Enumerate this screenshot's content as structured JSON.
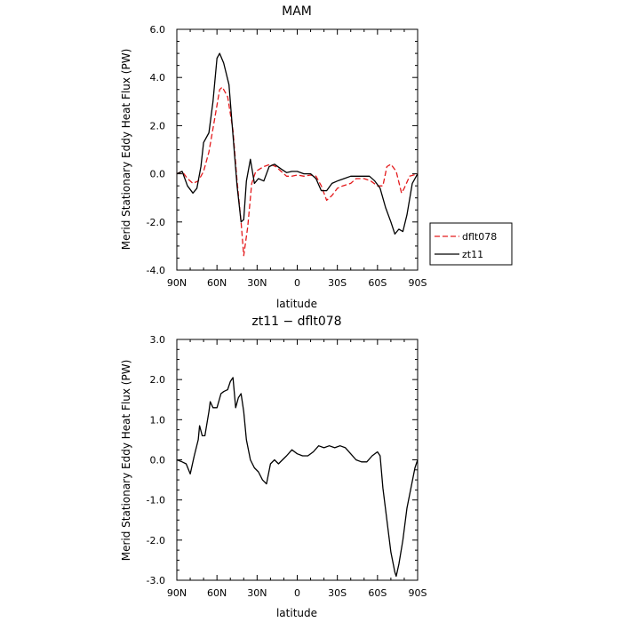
{
  "chart_data": [
    {
      "type": "line",
      "title": "MAM",
      "xlabel": "latitude",
      "ylabel": "Merid Stationary Eddy Heat Flux (PW)",
      "x_ticks": [
        {
          "value": 90,
          "label": "90N"
        },
        {
          "value": 60,
          "label": "60N"
        },
        {
          "value": 30,
          "label": "30N"
        },
        {
          "value": 0,
          "label": "0"
        },
        {
          "value": -30,
          "label": "30S"
        },
        {
          "value": -60,
          "label": "60S"
        },
        {
          "value": -90,
          "label": "90S"
        }
      ],
      "xlim": [
        90,
        -90
      ],
      "y_ticks": [
        {
          "value": 6,
          "label": "6.0"
        },
        {
          "value": 4,
          "label": "4.0"
        },
        {
          "value": 2,
          "label": "2.0"
        },
        {
          "value": 0,
          "label": "0.0"
        },
        {
          "value": -2,
          "label": "-2.0"
        },
        {
          "value": -4,
          "label": "-4.0"
        }
      ],
      "ylim": [
        -4,
        6
      ],
      "grid": false,
      "legend": {
        "placement": "right"
      },
      "series": [
        {
          "name": "dflt078",
          "color": "#e41a1c",
          "dash": "dashed",
          "points": [
            [
              90,
              0.0
            ],
            [
              86,
              0.1
            ],
            [
              82,
              -0.2
            ],
            [
              78,
              -0.4
            ],
            [
              74,
              -0.3
            ],
            [
              70,
              0.1
            ],
            [
              66,
              0.9
            ],
            [
              62,
              2.2
            ],
            [
              58,
              3.5
            ],
            [
              56,
              3.6
            ],
            [
              52,
              3.2
            ],
            [
              48,
              1.8
            ],
            [
              45,
              -0.3
            ],
            [
              42,
              -2.0
            ],
            [
              40,
              -3.4
            ],
            [
              37,
              -2.2
            ],
            [
              34,
              -0.4
            ],
            [
              31,
              0.1
            ],
            [
              28,
              0.2
            ],
            [
              25,
              0.3
            ],
            [
              20,
              0.4
            ],
            [
              16,
              0.3
            ],
            [
              12,
              0.1
            ],
            [
              8,
              -0.1
            ],
            [
              4,
              -0.1
            ],
            [
              0,
              -0.05
            ],
            [
              -5,
              -0.1
            ],
            [
              -10,
              -0.05
            ],
            [
              -14,
              -0.1
            ],
            [
              -18,
              -0.5
            ],
            [
              -22,
              -1.1
            ],
            [
              -26,
              -0.9
            ],
            [
              -30,
              -0.6
            ],
            [
              -34,
              -0.5
            ],
            [
              -40,
              -0.4
            ],
            [
              -44,
              -0.2
            ],
            [
              -50,
              -0.2
            ],
            [
              -55,
              -0.3
            ],
            [
              -60,
              -0.5
            ],
            [
              -64,
              -0.5
            ],
            [
              -67,
              0.3
            ],
            [
              -70,
              0.4
            ],
            [
              -74,
              0.1
            ],
            [
              -78,
              -0.8
            ],
            [
              -80,
              -0.6
            ],
            [
              -84,
              -0.1
            ],
            [
              -90,
              0.0
            ]
          ]
        },
        {
          "name": "zt11",
          "color": "#000000",
          "dash": "solid",
          "points": [
            [
              90,
              0.0
            ],
            [
              86,
              0.1
            ],
            [
              82,
              -0.5
            ],
            [
              78,
              -0.8
            ],
            [
              75,
              -0.6
            ],
            [
              72,
              0.3
            ],
            [
              70,
              1.3
            ],
            [
              66,
              1.7
            ],
            [
              63,
              3.0
            ],
            [
              60,
              4.8
            ],
            [
              58,
              5.0
            ],
            [
              55,
              4.6
            ],
            [
              51,
              3.7
            ],
            [
              48,
              1.6
            ],
            [
              45,
              -0.5
            ],
            [
              42,
              -2.0
            ],
            [
              40,
              -1.9
            ],
            [
              38,
              -0.3
            ],
            [
              35,
              0.6
            ],
            [
              32,
              -0.4
            ],
            [
              29,
              -0.2
            ],
            [
              25,
              -0.3
            ],
            [
              21,
              0.3
            ],
            [
              17,
              0.4
            ],
            [
              12,
              0.2
            ],
            [
              8,
              0.05
            ],
            [
              4,
              0.1
            ],
            [
              0,
              0.1
            ],
            [
              -5,
              0.0
            ],
            [
              -10,
              0.0
            ],
            [
              -14,
              -0.2
            ],
            [
              -18,
              -0.7
            ],
            [
              -22,
              -0.7
            ],
            [
              -26,
              -0.4
            ],
            [
              -30,
              -0.3
            ],
            [
              -35,
              -0.2
            ],
            [
              -40,
              -0.1
            ],
            [
              -48,
              -0.1
            ],
            [
              -54,
              -0.1
            ],
            [
              -58,
              -0.3
            ],
            [
              -62,
              -0.6
            ],
            [
              -66,
              -1.4
            ],
            [
              -70,
              -2.0
            ],
            [
              -73,
              -2.5
            ],
            [
              -76,
              -2.3
            ],
            [
              -79,
              -2.4
            ],
            [
              -82,
              -1.7
            ],
            [
              -86,
              -0.4
            ],
            [
              -90,
              0.0
            ]
          ]
        }
      ]
    },
    {
      "type": "line",
      "title": "zt11 − dflt078",
      "xlabel": "latitude",
      "ylabel": "Merid Stationary Eddy Heat Flux (PW)",
      "x_ticks": [
        {
          "value": 90,
          "label": "90N"
        },
        {
          "value": 60,
          "label": "60N"
        },
        {
          "value": 30,
          "label": "30N"
        },
        {
          "value": 0,
          "label": "0"
        },
        {
          "value": -30,
          "label": "30S"
        },
        {
          "value": -60,
          "label": "60S"
        },
        {
          "value": -90,
          "label": "90S"
        }
      ],
      "xlim": [
        90,
        -90
      ],
      "y_ticks": [
        {
          "value": 3,
          "label": "3.0"
        },
        {
          "value": 2,
          "label": "2.0"
        },
        {
          "value": 1,
          "label": "1.0"
        },
        {
          "value": 0,
          "label": "0.0"
        },
        {
          "value": -1,
          "label": "-1.0"
        },
        {
          "value": -2,
          "label": "-2.0"
        },
        {
          "value": -3,
          "label": "-3.0"
        }
      ],
      "ylim": [
        -3,
        3
      ],
      "grid": false,
      "series": [
        {
          "color": "#000000",
          "dash": "solid",
          "points": [
            [
              90,
              0.0
            ],
            [
              86,
              -0.05
            ],
            [
              83,
              -0.1
            ],
            [
              80,
              -0.35
            ],
            [
              77,
              0.1
            ],
            [
              74,
              0.5
            ],
            [
              73,
              0.85
            ],
            [
              71,
              0.6
            ],
            [
              69,
              0.6
            ],
            [
              66,
              1.2
            ],
            [
              65,
              1.45
            ],
            [
              63,
              1.3
            ],
            [
              60,
              1.3
            ],
            [
              57,
              1.65
            ],
            [
              55,
              1.7
            ],
            [
              52,
              1.75
            ],
            [
              50,
              1.95
            ],
            [
              48,
              2.05
            ],
            [
              46,
              1.3
            ],
            [
              44,
              1.55
            ],
            [
              42,
              1.65
            ],
            [
              40,
              1.2
            ],
            [
              38,
              0.5
            ],
            [
              35,
              0.0
            ],
            [
              32,
              -0.2
            ],
            [
              29,
              -0.3
            ],
            [
              26,
              -0.5
            ],
            [
              23,
              -0.6
            ],
            [
              20,
              -0.1
            ],
            [
              17,
              0.0
            ],
            [
              14,
              -0.1
            ],
            [
              11,
              0.0
            ],
            [
              8,
              0.1
            ],
            [
              4,
              0.25
            ],
            [
              0,
              0.15
            ],
            [
              -4,
              0.1
            ],
            [
              -8,
              0.1
            ],
            [
              -12,
              0.2
            ],
            [
              -16,
              0.35
            ],
            [
              -20,
              0.3
            ],
            [
              -24,
              0.35
            ],
            [
              -28,
              0.3
            ],
            [
              -32,
              0.35
            ],
            [
              -36,
              0.3
            ],
            [
              -40,
              0.15
            ],
            [
              -44,
              0.0
            ],
            [
              -48,
              -0.05
            ],
            [
              -52,
              -0.05
            ],
            [
              -56,
              0.1
            ],
            [
              -60,
              0.2
            ],
            [
              -62,
              0.1
            ],
            [
              -64,
              -0.7
            ],
            [
              -67,
              -1.5
            ],
            [
              -70,
              -2.3
            ],
            [
              -73,
              -2.8
            ],
            [
              -74,
              -2.9
            ],
            [
              -76,
              -2.6
            ],
            [
              -79,
              -2.0
            ],
            [
              -82,
              -1.2
            ],
            [
              -85,
              -0.7
            ],
            [
              -88,
              -0.2
            ],
            [
              -90,
              0.0
            ]
          ]
        }
      ]
    }
  ]
}
